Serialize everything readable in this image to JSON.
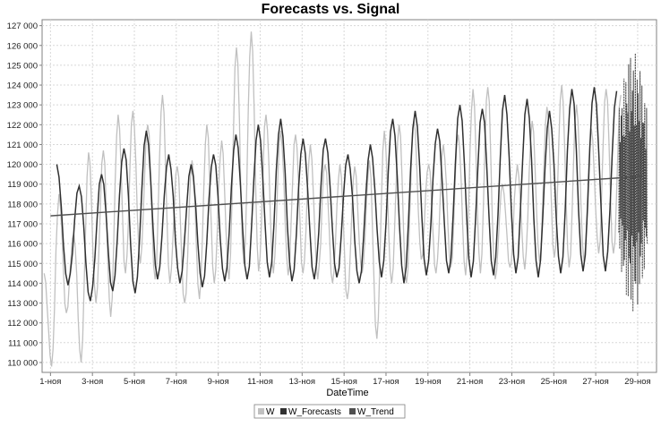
{
  "chart_data": {
    "type": "line",
    "title": "Forecasts vs. Signal",
    "xlabel": "DateTime",
    "ylabel": "",
    "ylim": [
      109500,
      127300
    ],
    "xlim_days": [
      0.6,
      29.9
    ],
    "grid": true,
    "legend_position": "bottom",
    "x_tick_labels": [
      "1-ноя",
      "3-ноя",
      "5-ноя",
      "7-ноя",
      "9-ноя",
      "11-ноя",
      "13-ноя",
      "15-ноя",
      "17-ноя",
      "19-ноя",
      "21-ноя",
      "23-ноя",
      "25-ноя",
      "27-ноя",
      "29-ноя"
    ],
    "y_ticks": [
      110000,
      111000,
      112000,
      113000,
      114000,
      115000,
      116000,
      117000,
      118000,
      119000,
      120000,
      121000,
      122000,
      123000,
      124000,
      125000,
      126000,
      127000
    ],
    "y_tick_labels": [
      "110 000",
      "111 000",
      "112 000",
      "113 000",
      "114 000",
      "115 000",
      "116 000",
      "117 000",
      "118 000",
      "119 000",
      "120 000",
      "121 000",
      "122 000",
      "123 000",
      "124 000",
      "125 000",
      "126 000",
      "127 000"
    ],
    "series": [
      {
        "name": "W",
        "color": "#c0c0c0",
        "x": [
          "1-ноя",
          "1-ноя",
          "2-ноя",
          "3-ноя",
          "3-ноя",
          "4-ноя",
          "5-ноя",
          "5-ноя",
          "6-ноя",
          "7-ноя",
          "7-ноя",
          "8-ноя",
          "9-ноя",
          "9-ноя",
          "10-ноя",
          "11-ноя",
          "11-ноя",
          "12-ноя",
          "13-ноя",
          "13-ноя",
          "14-ноя",
          "15-ноя",
          "15-ноя",
          "16-ноя",
          "17-ноя",
          "17-ноя",
          "18-ноя",
          "19-ноя",
          "19-ноя",
          "20-ноя",
          "21-ноя",
          "21-ноя",
          "22-ноя",
          "23-ноя",
          "23-ноя",
          "24-ноя",
          "25-ноя",
          "25-ноя",
          "26-ноя",
          "27-ноя",
          "27-ноя",
          "28-ноя"
        ],
        "daily_highs": [
          114500,
          118500,
          116500,
          120600,
          120700,
          122500,
          122700,
          122000,
          123500,
          119900,
          120200,
          122000,
          121200,
          125900,
          126700,
          122500,
          121700,
          121500,
          121000,
          120000,
          120000,
          119900,
          120200,
          121700,
          122000,
          122200,
          120000,
          121000,
          121500,
          123800,
          123900,
          119000,
          120000,
          122200,
          122900,
          124000,
          123000,
          121800,
          123800,
          123500
        ],
        "daily_lows": [
          109800,
          112500,
          110000,
          113000,
          112300,
          114500,
          115000,
          114200,
          114000,
          113000,
          113200,
          114000,
          114200,
          115000,
          114600,
          114500,
          114400,
          114500,
          114200,
          114000,
          113200,
          114500,
          111200,
          114000,
          114000,
          115200,
          114500,
          114800,
          114400,
          114500,
          114200,
          114800,
          114700,
          115100,
          115300,
          114800,
          115100,
          115500
        ],
        "range": [
          109800,
          126700
        ]
      },
      {
        "name": "W_Forecasts",
        "color": "#303030",
        "daily_highs": [
          120000,
          118900,
          119500,
          120800,
          121700,
          120500,
          120000,
          120500,
          121500,
          122000,
          122300,
          121300,
          121300,
          120500,
          121000,
          122300,
          122700,
          121800,
          123000,
          122800,
          123500,
          123300,
          122700,
          123800,
          123900,
          123700
        ],
        "daily_lows": [
          113900,
          113100,
          113600,
          113500,
          114200,
          114000,
          113800,
          114100,
          114200,
          114300,
          114100,
          114200,
          114300,
          114000,
          114300,
          114000,
          114400,
          114500,
          114300,
          114400,
          114500,
          114300,
          114500,
          114600
        ],
        "range": [
          113100,
          123900
        ]
      },
      {
        "name": "W_Trend",
        "color": "#505050",
        "start": 117400,
        "end": 119400,
        "tail_range": [
          112500,
          125700
        ]
      }
    ]
  }
}
